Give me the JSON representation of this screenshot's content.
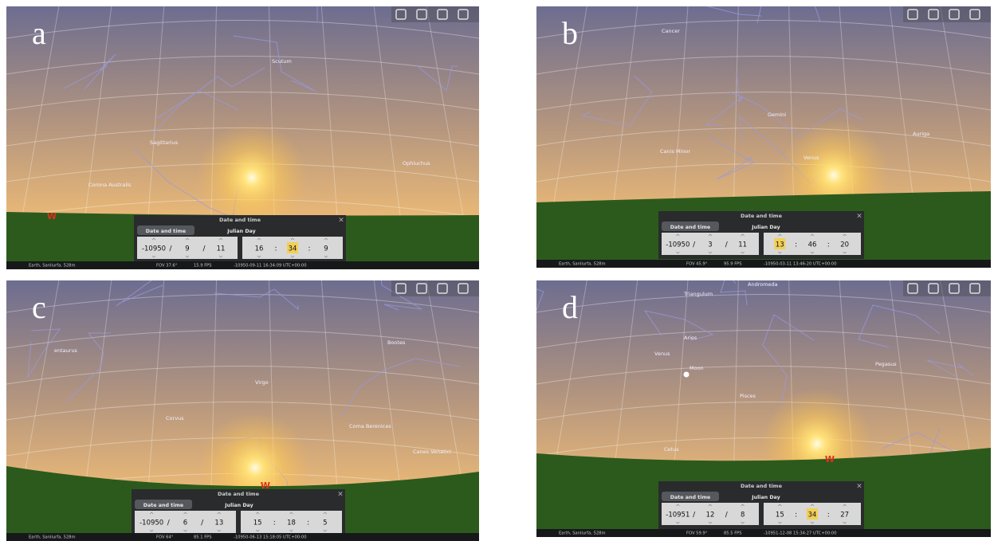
{
  "panels": [
    {
      "letter": "a",
      "labels": [
        "Scutum",
        "Sagittarius",
        "Corona Australis",
        "Ophiuchus"
      ],
      "cardinal": "W",
      "dialog": {
        "title": "Date and time",
        "close": "×",
        "tabs": [
          "Date and time",
          "Julian Day"
        ],
        "date": [
          -10950,
          9,
          11
        ],
        "time": [
          16,
          34,
          9
        ],
        "date_separator": "/",
        "time_separator": ":",
        "highlighted": "time.1"
      },
      "status": {
        "location": "Earth, Sanliurfa, 528m",
        "fov": "FOV 37.6°",
        "fps": "15.9 FPS",
        "datetime": "-10950-09-11  16:34:09 UTC+00:00"
      }
    },
    {
      "letter": "b",
      "labels": [
        "Cancer",
        "Gemini",
        "Canis Minor",
        "Auriga",
        "Venus"
      ],
      "dialog": {
        "title": "Date and time",
        "close": "×",
        "tabs": [
          "Date and time",
          "Julian Day"
        ],
        "date": [
          -10950,
          3,
          11
        ],
        "time": [
          13,
          46,
          20
        ],
        "date_separator": "/",
        "time_separator": ":",
        "highlighted": "time.0"
      },
      "status": {
        "location": "Earth, Sanliurfa, 528m",
        "fov": "FOV 45.9°",
        "fps": "95.9 FPS",
        "datetime": "-10950-03-11  13:46:20 UTC+00:00"
      }
    },
    {
      "letter": "c",
      "labels": [
        "entaurus",
        "Virgo",
        "Bootes",
        "Corvus",
        "Coma Berenices",
        "Canes Venatici"
      ],
      "cardinal": "W",
      "dialog": {
        "title": "Date and time",
        "close": "×",
        "tabs": [
          "Date and time",
          "Julian Day"
        ],
        "date": [
          -10950,
          6,
          13
        ],
        "time": [
          15,
          18,
          5
        ],
        "date_separator": "/",
        "time_separator": ":"
      },
      "status": {
        "location": "Earth, Sanliurfa, 528m",
        "fov": "FOV 64°",
        "fps": "85.1 FPS",
        "datetime": "-10950-06-13  15:18:05 UTC+00:00"
      }
    },
    {
      "letter": "d",
      "labels": [
        "Andromeda",
        "Triangulum",
        "Aries",
        "Venus",
        "Moon",
        "Pisces",
        "Pegasus",
        "Cetus"
      ],
      "cardinal": "W",
      "dialog": {
        "title": "Date and time",
        "close": "×",
        "tabs": [
          "Date and time",
          "Julian Day"
        ],
        "date": [
          -10951,
          12,
          8
        ],
        "time": [
          15,
          34,
          27
        ],
        "date_separator": "/",
        "time_separator": ":",
        "highlighted": "time.1"
      },
      "status": {
        "location": "Earth, Sanliurfa, 528m",
        "fov": "FOV 59.9°",
        "fps": "85.5 FPS",
        "datetime": "-10951-12-08  15:34:27 UTC+00:00"
      }
    }
  ]
}
